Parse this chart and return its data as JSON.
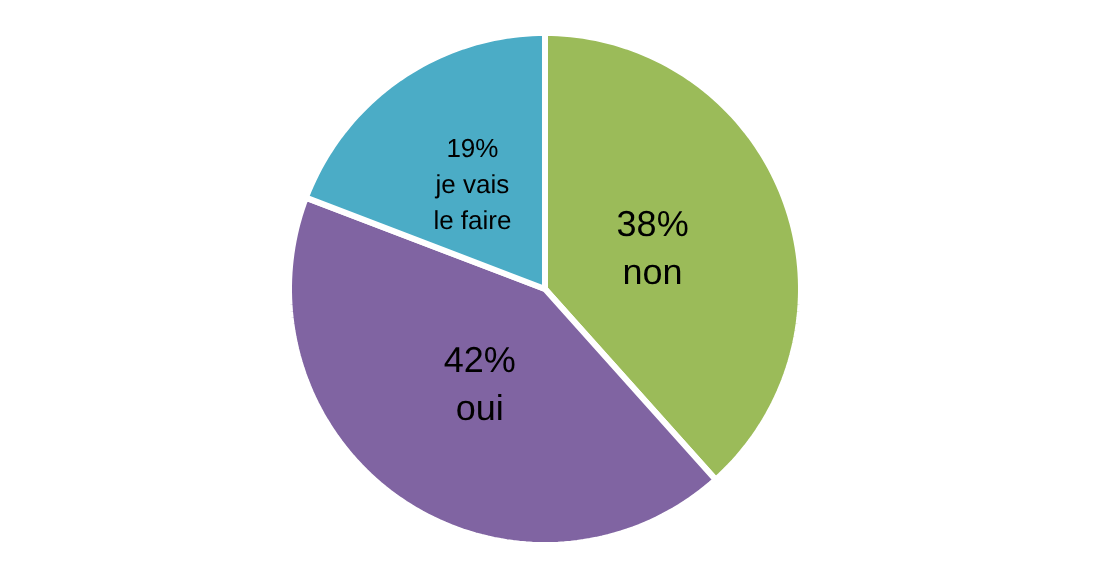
{
  "chart_data": {
    "type": "pie",
    "categories": [
      "non",
      "oui",
      "je vais le faire"
    ],
    "values": [
      38,
      42,
      19
    ],
    "value_labels": [
      "38%",
      "42%",
      "19%"
    ],
    "colors": [
      "#9bbb59",
      "#8064a2",
      "#4bacc6"
    ]
  }
}
